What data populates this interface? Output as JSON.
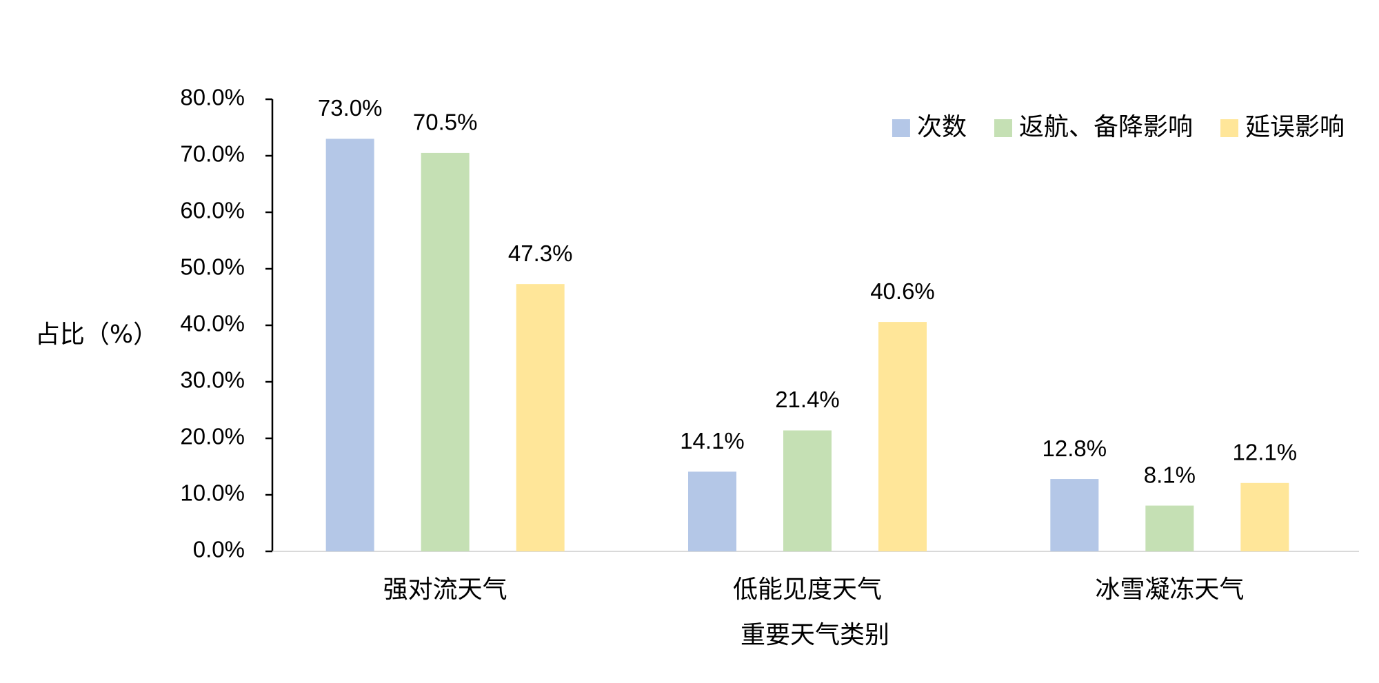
{
  "chart_data": {
    "type": "bar",
    "y_label": "占比（%）",
    "x_label": "重要天气类别",
    "categories": [
      "强对流天气",
      "低能见度天气",
      "冰雪凝冻天气"
    ],
    "series": [
      {
        "name": "次数",
        "color": "#b4c7e7",
        "values": [
          73.0,
          14.1,
          12.8
        ],
        "value_labels": [
          "73.0%",
          "14.1%",
          "12.8%"
        ]
      },
      {
        "name": "返航、备降影响",
        "color": "#c5e0b4",
        "values": [
          70.5,
          21.4,
          8.1
        ],
        "value_labels": [
          "70.5%",
          "21.4%",
          "8.1%"
        ]
      },
      {
        "name": "延误影响",
        "color": "#ffe699",
        "values": [
          47.3,
          40.6,
          12.1
        ],
        "value_labels": [
          "47.3%",
          "40.6%",
          "12.1%"
        ]
      }
    ],
    "ylim": [
      0,
      80
    ],
    "yticks": [
      {
        "value": 0,
        "label": "0.0%"
      },
      {
        "value": 10,
        "label": "10.0%"
      },
      {
        "value": 20,
        "label": "20.0%"
      },
      {
        "value": 30,
        "label": "30.0%"
      },
      {
        "value": 40,
        "label": "40.0%"
      },
      {
        "value": 50,
        "label": "50.0%"
      },
      {
        "value": 60,
        "label": "60.0%"
      },
      {
        "value": 70,
        "label": "70.0%"
      },
      {
        "value": 80,
        "label": "80.0%"
      }
    ],
    "legend": "top-right"
  }
}
